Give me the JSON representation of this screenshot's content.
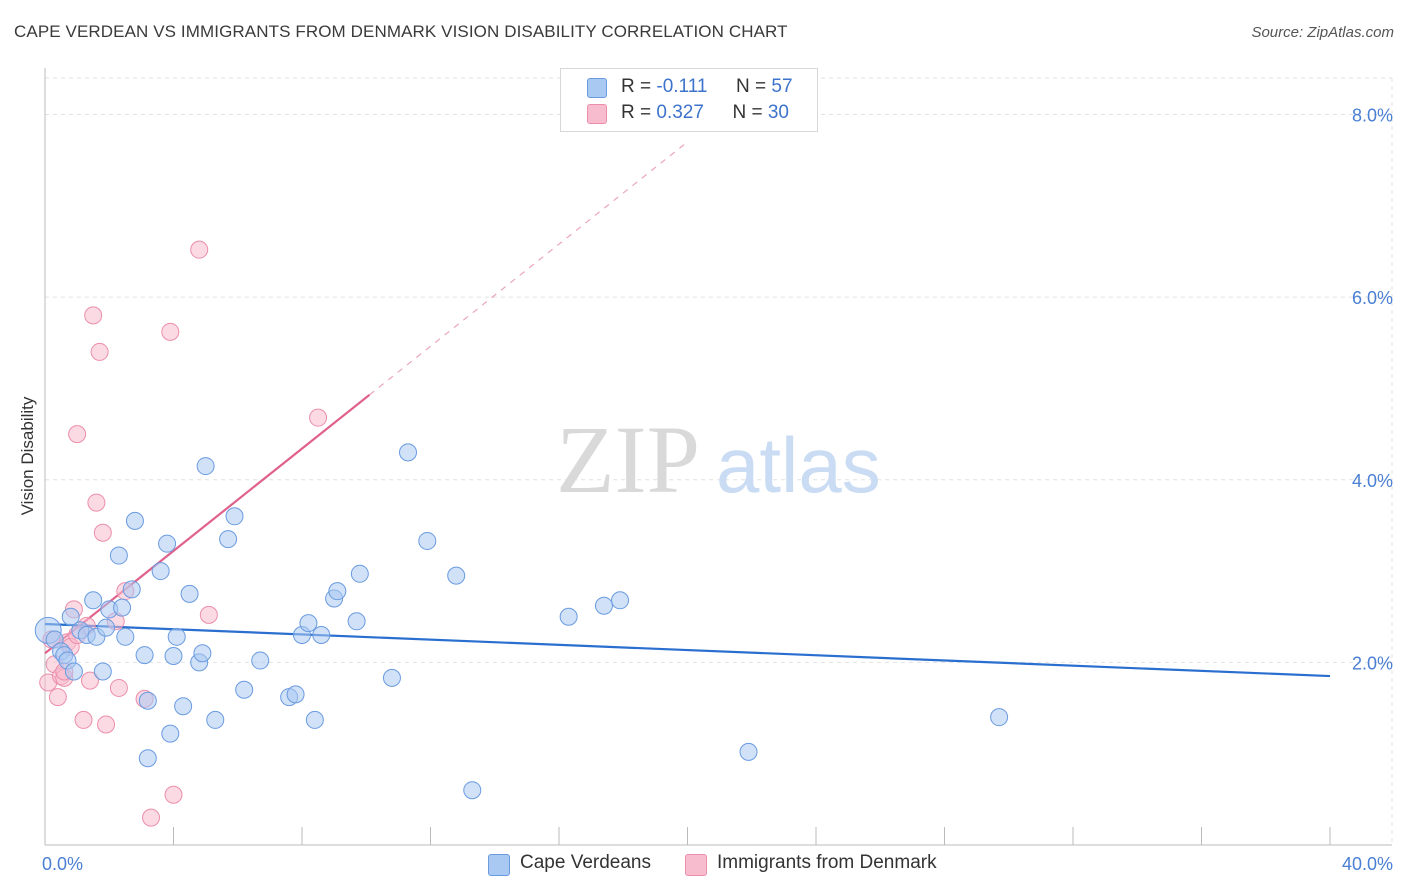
{
  "title": "CAPE VERDEAN VS IMMIGRANTS FROM DENMARK VISION DISABILITY CORRELATION CHART",
  "source": "Source: ZipAtlas.com",
  "watermark": {
    "zip": "ZIP",
    "atlas": "atlas"
  },
  "legend": {
    "series1": {
      "r_label": "R = ",
      "r_value": "-0.111",
      "n_label": "N = ",
      "n_value": "57"
    },
    "series2": {
      "r_label": "R = ",
      "r_value": "0.327",
      "n_label": "N = ",
      "n_value": "30"
    }
  },
  "colors": {
    "blue_fill": "#a9c8f2",
    "blue_stroke": "#6a9be0",
    "blue_line": "#2a6fcf",
    "pink_fill": "#f7bccd",
    "pink_stroke": "#ec8eab",
    "pink_line": "#e0628c",
    "grid": "#e2e2e2",
    "tick_label": "#4a7fd4"
  },
  "chart_data": {
    "type": "scatter",
    "title": "CAPE VERDEAN VS IMMIGRANTS FROM DENMARK VISION DISABILITY CORRELATION CHART",
    "xlabel": "",
    "ylabel": "Vision Disability",
    "xlim": [
      0,
      40
    ],
    "ylim": [
      0,
      8.4
    ],
    "x_tick_labels": [
      "0.0%",
      "40.0%"
    ],
    "y_ticks": [
      2,
      4,
      6,
      8
    ],
    "y_tick_labels": [
      "2.0%",
      "4.0%",
      "6.0%",
      "8.0%"
    ],
    "series": [
      {
        "name": "Cape Verdeans",
        "r": -0.111,
        "n": 57,
        "trend": {
          "x": [
            0,
            40
          ],
          "y": [
            2.42,
            1.85
          ]
        },
        "points": [
          [
            0.1,
            2.35
          ],
          [
            0.3,
            2.25
          ],
          [
            0.5,
            2.12
          ],
          [
            0.6,
            2.08
          ],
          [
            0.7,
            2.02
          ],
          [
            0.8,
            2.5
          ],
          [
            0.9,
            1.9
          ],
          [
            1.1,
            2.35
          ],
          [
            1.3,
            2.3
          ],
          [
            1.5,
            2.68
          ],
          [
            1.6,
            2.28
          ],
          [
            1.8,
            1.9
          ],
          [
            1.9,
            2.38
          ],
          [
            2.0,
            2.58
          ],
          [
            2.3,
            3.17
          ],
          [
            2.4,
            2.6
          ],
          [
            2.5,
            2.28
          ],
          [
            2.7,
            2.8
          ],
          [
            2.8,
            3.55
          ],
          [
            3.1,
            2.08
          ],
          [
            3.2,
            1.58
          ],
          [
            3.2,
            0.95
          ],
          [
            3.6,
            3.0
          ],
          [
            3.8,
            3.3
          ],
          [
            3.9,
            1.22
          ],
          [
            4.0,
            2.07
          ],
          [
            4.1,
            2.28
          ],
          [
            4.3,
            1.52
          ],
          [
            4.5,
            2.75
          ],
          [
            4.8,
            2.0
          ],
          [
            4.9,
            2.1
          ],
          [
            5.0,
            4.15
          ],
          [
            5.3,
            1.37
          ],
          [
            5.7,
            3.35
          ],
          [
            5.9,
            3.6
          ],
          [
            6.2,
            1.7
          ],
          [
            6.7,
            2.02
          ],
          [
            7.6,
            1.62
          ],
          [
            7.8,
            1.65
          ],
          [
            8.0,
            2.3
          ],
          [
            8.2,
            2.43
          ],
          [
            8.4,
            1.37
          ],
          [
            8.6,
            2.3
          ],
          [
            9.0,
            2.7
          ],
          [
            9.1,
            2.78
          ],
          [
            9.7,
            2.45
          ],
          [
            9.8,
            2.97
          ],
          [
            10.8,
            1.83
          ],
          [
            11.3,
            4.3
          ],
          [
            11.9,
            3.33
          ],
          [
            12.8,
            2.95
          ],
          [
            13.3,
            0.6
          ],
          [
            16.3,
            2.5
          ],
          [
            17.4,
            2.62
          ],
          [
            17.9,
            2.68
          ],
          [
            21.9,
            1.02
          ],
          [
            29.7,
            1.4
          ]
        ]
      },
      {
        "name": "Immigrants from Denmark",
        "r": 0.327,
        "n": 30,
        "trend": {
          "x": [
            0,
            10.1
          ],
          "y": [
            2.1,
            4.93
          ]
        },
        "trend_dashed": {
          "x": [
            10.1,
            20.0
          ],
          "y": [
            4.93,
            7.7
          ]
        },
        "points": [
          [
            0.1,
            1.78
          ],
          [
            0.3,
            1.98
          ],
          [
            0.4,
            1.62
          ],
          [
            0.5,
            1.85
          ],
          [
            0.6,
            1.83
          ],
          [
            0.7,
            2.22
          ],
          [
            0.8,
            2.17
          ],
          [
            0.9,
            2.58
          ],
          [
            1.0,
            4.5
          ],
          [
            1.2,
            1.37
          ],
          [
            1.3,
            2.4
          ],
          [
            1.4,
            1.8
          ],
          [
            1.5,
            5.8
          ],
          [
            1.6,
            3.75
          ],
          [
            1.7,
            5.4
          ],
          [
            1.8,
            3.42
          ],
          [
            1.9,
            1.32
          ],
          [
            2.2,
            2.45
          ],
          [
            2.3,
            1.72
          ],
          [
            2.5,
            2.78
          ],
          [
            3.1,
            1.6
          ],
          [
            3.3,
            0.3
          ],
          [
            3.9,
            5.62
          ],
          [
            4.0,
            0.55
          ],
          [
            4.8,
            6.52
          ],
          [
            5.1,
            2.52
          ],
          [
            8.5,
            4.68
          ],
          [
            0.2,
            2.25
          ],
          [
            0.6,
            1.9
          ],
          [
            1.0,
            2.3
          ]
        ]
      }
    ]
  },
  "bottom_legend": {
    "series1": "Cape Verdeans",
    "series2": "Immigrants from Denmark"
  }
}
